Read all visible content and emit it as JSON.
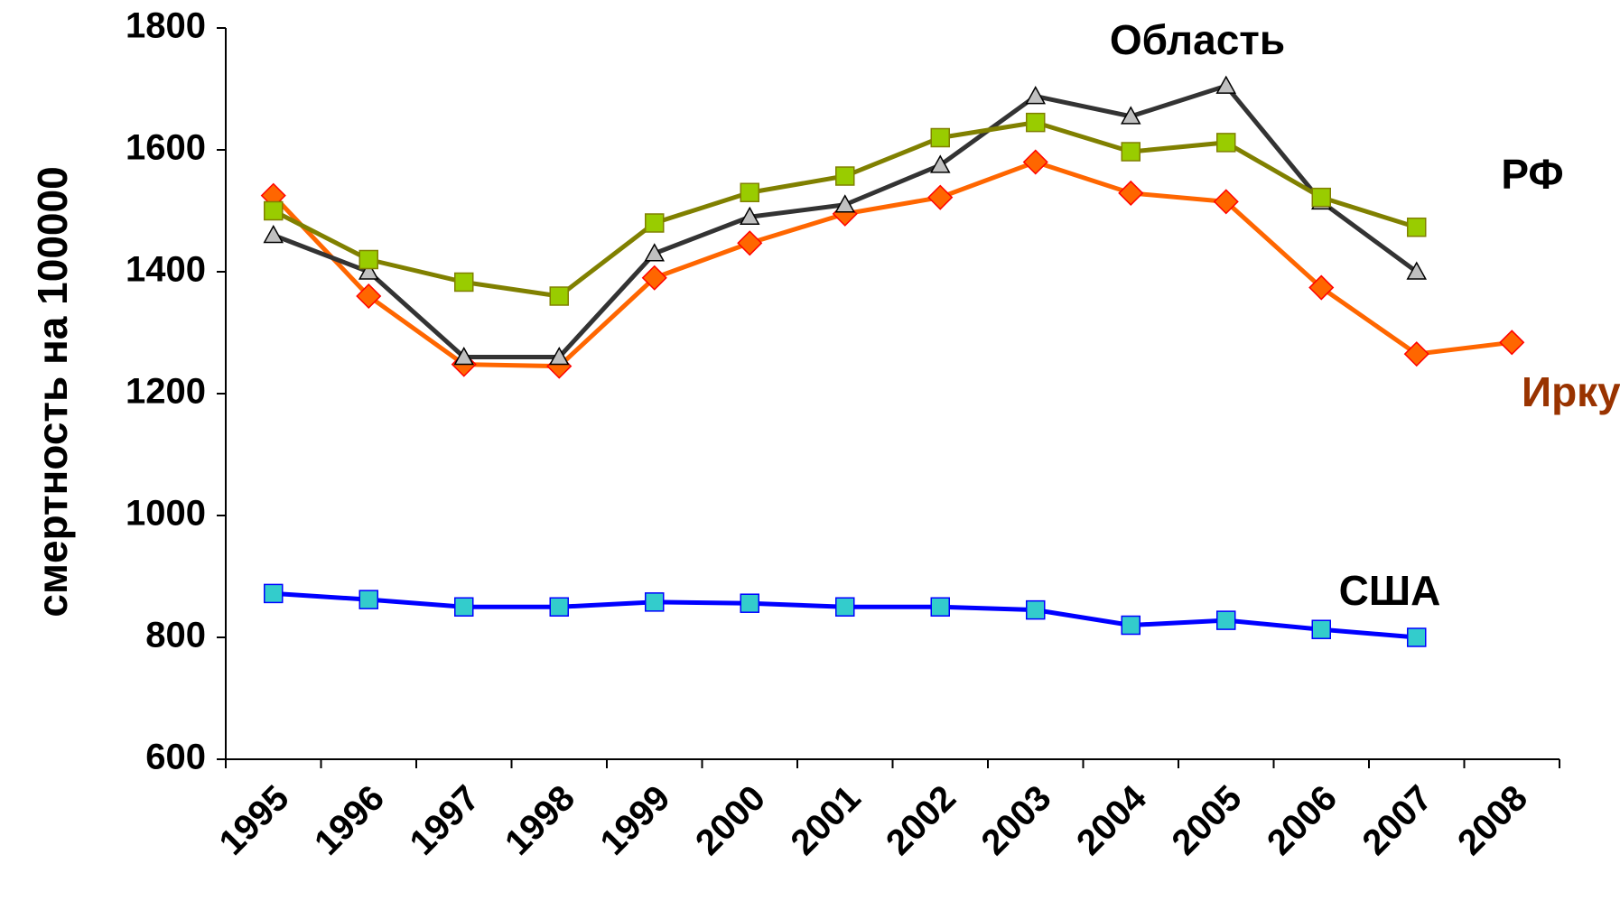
{
  "chart_data": {
    "type": "line",
    "y_label": "смертность на 100000",
    "categories": [
      "1995",
      "1996",
      "1997",
      "1998",
      "1999",
      "2000",
      "2001",
      "2002",
      "2003",
      "2004",
      "2005",
      "2006",
      "2007",
      "2008"
    ],
    "ylim": [
      600,
      1800
    ],
    "yticks": [
      600,
      800,
      1000,
      1200,
      1400,
      1600,
      1800
    ],
    "grid": false,
    "series": [
      {
        "name": "Иркутск",
        "color": "#ff6600",
        "marker": "diamond",
        "marker_color": "#ff6600",
        "label_color": "#993300",
        "values": [
          1525,
          1360,
          1248,
          1245,
          1390,
          1447,
          1495,
          1522,
          1580,
          1529,
          1515,
          1374,
          1265,
          1284
        ]
      },
      {
        "name": "Область",
        "color": "#333333",
        "marker": "triangle",
        "marker_color": "#c0c0c0",
        "label_color": "#000000",
        "values": [
          1460,
          1400,
          1260,
          1260,
          1430,
          1490,
          1510,
          1575,
          1688,
          1655,
          1705,
          1515,
          1400,
          null
        ]
      },
      {
        "name": "РФ",
        "color": "#808000",
        "marker": "square",
        "marker_color": "#99cc00",
        "label_color": "#000000",
        "values": [
          1500,
          1420,
          1383,
          1360,
          1480,
          1530,
          1557,
          1620,
          1645,
          1597,
          1612,
          1522,
          1473,
          null
        ]
      },
      {
        "name": "США",
        "color": "#0000ff",
        "marker": "square",
        "marker_color": "#33cccc",
        "label_color": "#000000",
        "values": [
          872,
          862,
          850,
          850,
          858,
          856,
          850,
          850,
          845,
          820,
          828,
          813,
          800,
          null
        ]
      }
    ]
  }
}
